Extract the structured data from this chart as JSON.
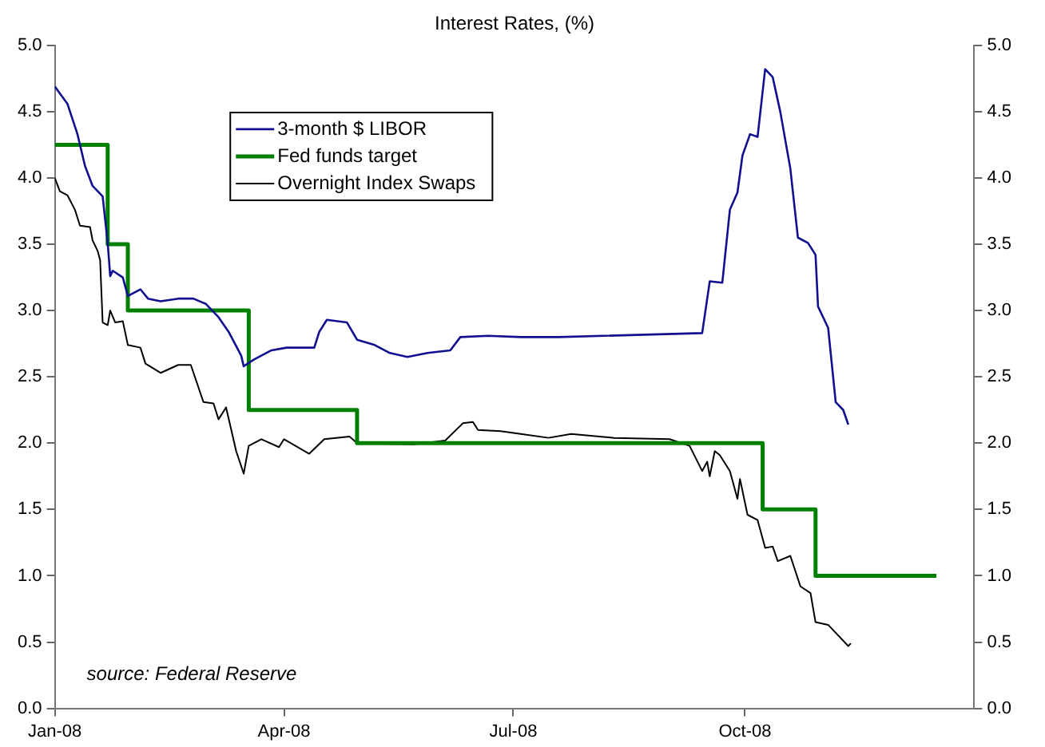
{
  "chart_data": {
    "type": "line",
    "title": "Interest Rates, (%)",
    "xlim": [
      "2008-01-01",
      "2008-12-31"
    ],
    "xticks": [
      {
        "value": "2008-01-01",
        "label": "Jan-08"
      },
      {
        "value": "2008-04-01",
        "label": "Apr-08"
      },
      {
        "value": "2008-07-01",
        "label": "Jul-08"
      },
      {
        "value": "2008-10-01",
        "label": "Oct-08"
      }
    ],
    "ylim": [
      0,
      5
    ],
    "yticks": [
      {
        "value": 0,
        "label": "0.0"
      },
      {
        "value": 0.5,
        "label": "0.5"
      },
      {
        "value": 1,
        "label": "1.0"
      },
      {
        "value": 1.5,
        "label": "1.5"
      },
      {
        "value": 2,
        "label": "2.0"
      },
      {
        "value": 2.5,
        "label": "2.5"
      },
      {
        "value": 3,
        "label": "3.0"
      },
      {
        "value": 3.5,
        "label": "3.5"
      },
      {
        "value": 4,
        "label": "4.0"
      },
      {
        "value": 4.5,
        "label": "4.5"
      },
      {
        "value": 5,
        "label": "5.0"
      }
    ],
    "y2lim": [
      0,
      5
    ],
    "y2ticks": [
      {
        "value": 0,
        "label": "0.0"
      },
      {
        "value": 0.5,
        "label": "0.5"
      },
      {
        "value": 1,
        "label": "1.0"
      },
      {
        "value": 1.5,
        "label": "1.5"
      },
      {
        "value": 2,
        "label": "2.0"
      },
      {
        "value": 2.5,
        "label": "2.5"
      },
      {
        "value": 3,
        "label": "3.0"
      },
      {
        "value": 3.5,
        "label": "3.5"
      },
      {
        "value": 4,
        "label": "4.0"
      },
      {
        "value": 4.5,
        "label": "4.5"
      },
      {
        "value": 5,
        "label": "5.0"
      }
    ],
    "grid": false,
    "legend": "top left",
    "marker": "none",
    "annotations": [
      "source: Federal Reserve"
    ],
    "series": [
      {
        "name": "3-month $ LIBOR",
        "color": "#101090",
        "x": [
          "2008-01-01",
          "2008-01-06",
          "2008-01-10",
          "2008-01-13",
          "2008-01-16",
          "2008-01-20",
          "2008-01-22",
          "2008-01-23",
          "2008-01-24",
          "2008-01-28",
          "2008-01-30",
          "2008-02-04",
          "2008-02-07",
          "2008-02-12",
          "2008-02-19",
          "2008-02-25",
          "2008-03-01",
          "2008-03-06",
          "2008-03-10",
          "2008-03-15",
          "2008-03-16",
          "2008-03-20",
          "2008-03-27",
          "2008-04-02",
          "2008-04-13",
          "2008-04-15",
          "2008-04-18",
          "2008-04-26",
          "2008-04-30",
          "2008-05-07",
          "2008-05-13",
          "2008-05-20",
          "2008-05-28",
          "2008-06-06",
          "2008-06-10",
          "2008-06-21",
          "2008-07-04",
          "2008-07-19",
          "2008-09-14",
          "2008-09-17",
          "2008-09-22",
          "2008-09-25",
          "2008-09-28",
          "2008-09-30",
          "2008-10-03",
          "2008-10-06",
          "2008-10-09",
          "2008-10-12",
          "2008-10-15",
          "2008-10-19",
          "2008-10-22",
          "2008-10-26",
          "2008-10-29",
          "2008-10-30",
          "2008-11-03",
          "2008-11-06",
          "2008-11-09",
          "2008-11-11"
        ],
        "values": [
          4.69,
          4.56,
          4.33,
          4.09,
          3.94,
          3.86,
          3.51,
          3.26,
          3.3,
          3.25,
          3.11,
          3.16,
          3.09,
          3.07,
          3.09,
          3.09,
          3.05,
          2.95,
          2.84,
          2.66,
          2.58,
          2.63,
          2.7,
          2.72,
          2.72,
          2.84,
          2.93,
          2.91,
          2.78,
          2.74,
          2.68,
          2.65,
          2.68,
          2.7,
          2.8,
          2.81,
          2.8,
          2.8,
          2.83,
          3.22,
          3.21,
          3.76,
          3.89,
          4.17,
          4.33,
          4.31,
          4.82,
          4.76,
          4.5,
          4.07,
          3.55,
          3.51,
          3.42,
          3.03,
          2.87,
          2.31,
          2.25,
          2.14
        ]
      },
      {
        "name": "Fed funds target",
        "color": "#008000",
        "type": "step",
        "x": [
          "2008-01-01",
          "2008-01-22",
          "2008-01-30",
          "2008-03-18",
          "2008-04-30",
          "2008-10-08",
          "2008-10-29",
          "2008-12-16"
        ],
        "values": [
          4.25,
          3.5,
          3.0,
          2.25,
          2.0,
          1.5,
          1.0,
          1.0
        ]
      },
      {
        "name": "Overnight Index Swaps",
        "color": "#000000",
        "x": [
          "2008-01-01",
          "2008-01-03",
          "2008-01-06",
          "2008-01-09",
          "2008-01-11",
          "2008-01-15",
          "2008-01-16",
          "2008-01-18",
          "2008-01-19",
          "2008-01-20",
          "2008-01-22",
          "2008-01-23",
          "2008-01-25",
          "2008-01-28",
          "2008-01-30",
          "2008-02-04",
          "2008-02-06",
          "2008-02-12",
          "2008-02-19",
          "2008-02-24",
          "2008-02-29",
          "2008-03-04",
          "2008-03-06",
          "2008-03-09",
          "2008-03-13",
          "2008-03-16",
          "2008-03-18",
          "2008-03-23",
          "2008-03-30",
          "2008-04-01",
          "2008-04-11",
          "2008-04-17",
          "2008-04-27",
          "2008-04-30",
          "2008-05-22",
          "2008-06-04",
          "2008-06-11",
          "2008-06-15",
          "2008-06-17",
          "2008-06-26",
          "2008-07-04",
          "2008-07-15",
          "2008-07-24",
          "2008-08-10",
          "2008-09-01",
          "2008-09-09",
          "2008-09-14",
          "2008-09-16",
          "2008-09-17",
          "2008-09-19",
          "2008-09-21",
          "2008-09-25",
          "2008-09-28",
          "2008-09-29",
          "2008-10-02",
          "2008-10-06",
          "2008-10-09",
          "2008-10-12",
          "2008-10-14",
          "2008-10-19",
          "2008-10-23",
          "2008-10-27",
          "2008-10-29",
          "2008-11-03",
          "2008-11-11",
          "2008-11-12"
        ],
        "values": [
          4.0,
          3.9,
          3.87,
          3.76,
          3.64,
          3.63,
          3.53,
          3.45,
          3.38,
          2.91,
          2.89,
          3.0,
          2.91,
          2.92,
          2.74,
          2.72,
          2.6,
          2.53,
          2.59,
          2.59,
          2.31,
          2.3,
          2.18,
          2.27,
          1.94,
          1.77,
          1.98,
          2.03,
          1.97,
          2.03,
          1.92,
          2.03,
          2.05,
          2.0,
          1.99,
          2.02,
          2.15,
          2.16,
          2.1,
          2.09,
          2.07,
          2.04,
          2.07,
          2.04,
          2.03,
          1.98,
          1.79,
          1.86,
          1.75,
          1.94,
          1.91,
          1.79,
          1.58,
          1.73,
          1.46,
          1.42,
          1.21,
          1.22,
          1.11,
          1.15,
          0.92,
          0.87,
          0.65,
          0.63,
          0.47,
          0.49
        ]
      }
    ]
  }
}
